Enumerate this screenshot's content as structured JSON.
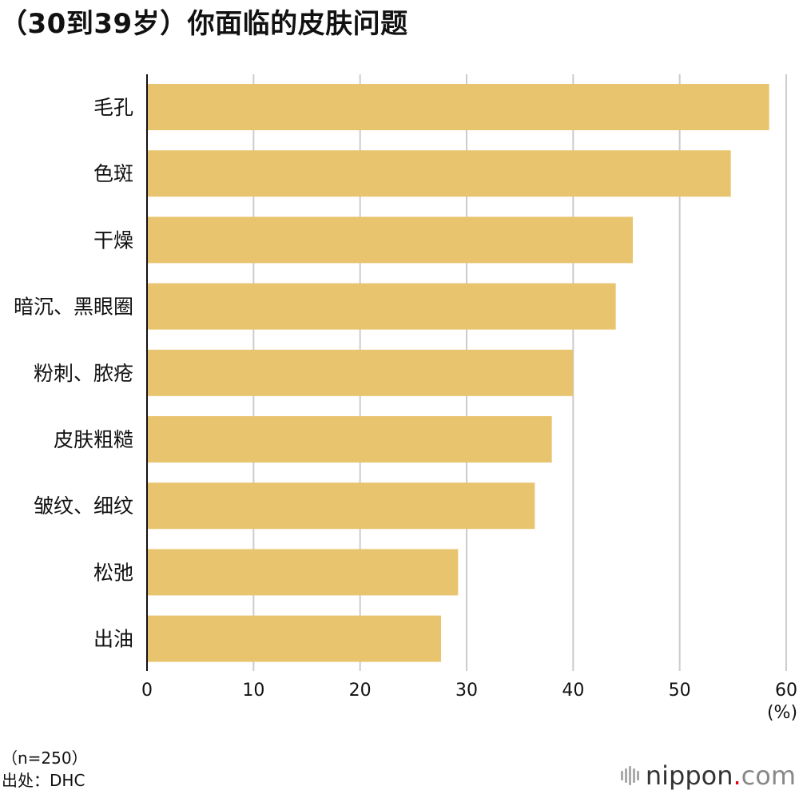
{
  "title": "（30到39岁）你面临的皮肤问题",
  "chart_data": {
    "type": "bar",
    "orientation": "horizontal",
    "categories": [
      "毛孔",
      "色斑",
      "干燥",
      "暗沉、黑眼圈",
      "粉刺、脓疮",
      "皮肤粗糙",
      "皱纹、细纹",
      "松弛",
      "出油"
    ],
    "values": [
      58.4,
      54.8,
      45.6,
      44.0,
      40.0,
      38.0,
      36.4,
      29.2,
      27.6
    ],
    "xlim": [
      0,
      60
    ],
    "xticks": [
      "0",
      "10",
      "20",
      "30",
      "40",
      "50",
      "60"
    ],
    "unit_label": "(%)",
    "grid": true,
    "bar_color": "#e8c46e",
    "grid_color": "#cccccc"
  },
  "footnotes": {
    "sample": "（n=250）",
    "source": "出处：DHC"
  },
  "logo": {
    "name": "nippon",
    "dot": ".",
    "tld": "com"
  }
}
